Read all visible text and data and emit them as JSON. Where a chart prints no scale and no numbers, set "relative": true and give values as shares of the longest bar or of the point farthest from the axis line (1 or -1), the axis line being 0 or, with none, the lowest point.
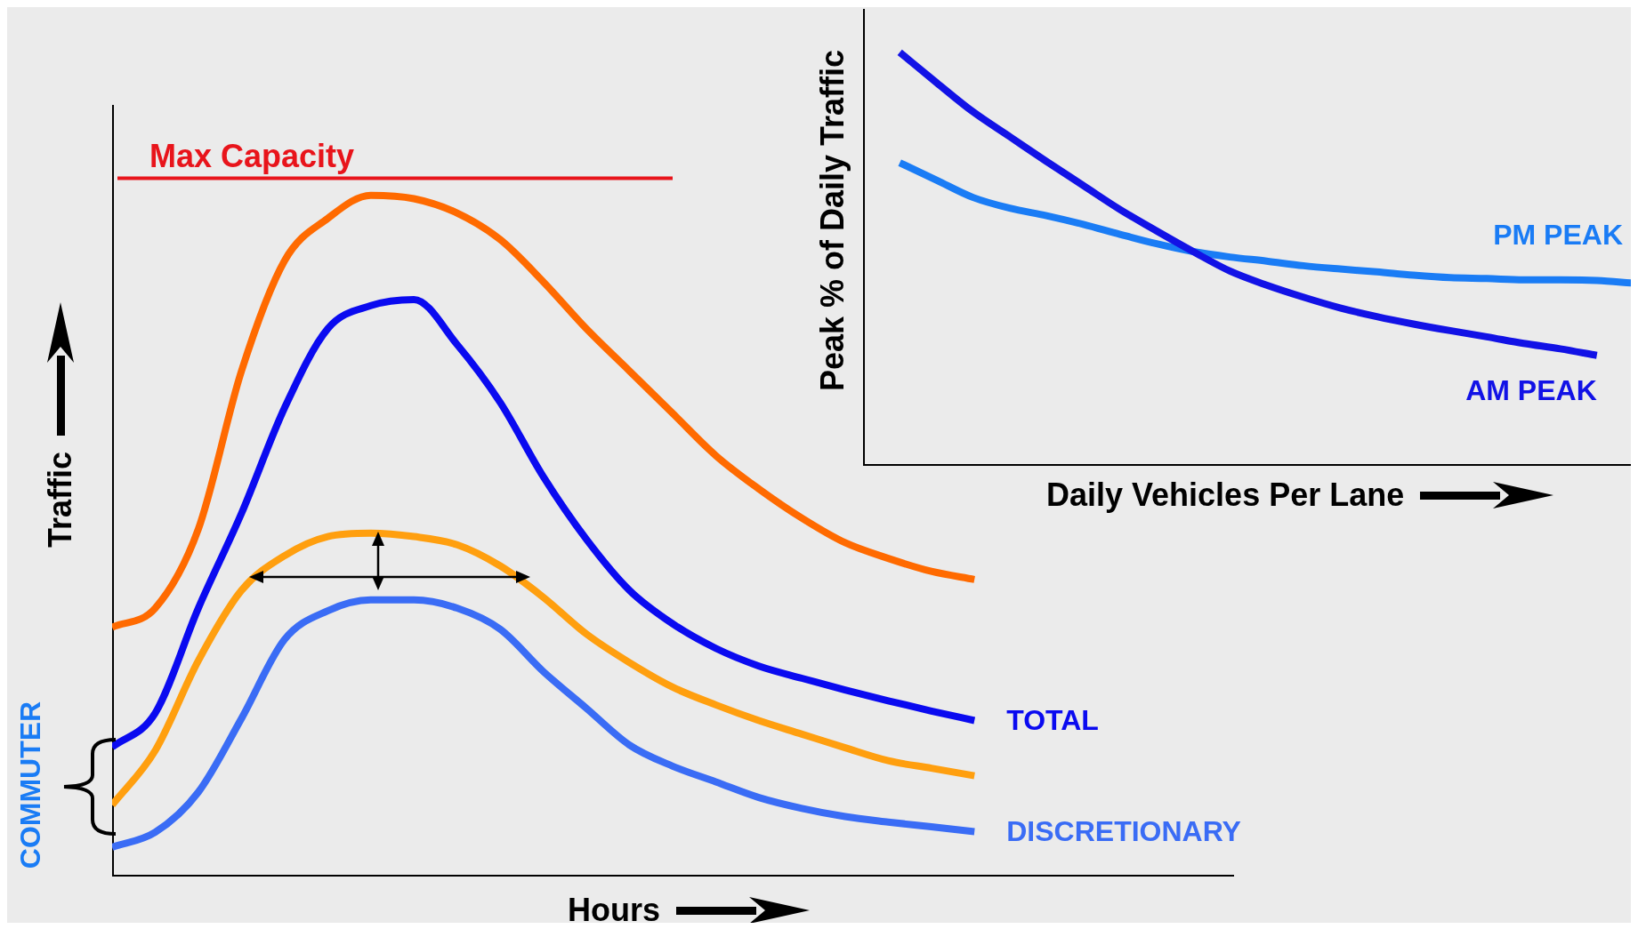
{
  "chart_data": [
    {
      "type": "line",
      "relative": true,
      "xlabel": "Hours",
      "ylabel": "Traffic",
      "annotations": [
        "COMMUTER"
      ],
      "categories": [
        null,
        null,
        null,
        null,
        null,
        null,
        null,
        null,
        null,
        null,
        null,
        null,
        null,
        null,
        null,
        null,
        null,
        null,
        null,
        null,
        null,
        null,
        null,
        null,
        null,
        null,
        null
      ],
      "ref_lines": [
        {
          "axis": "y",
          "value": 1.025,
          "label": "Max Capacity",
          "color": "#e8141b"
        }
      ],
      "series": [
        {
          "color": "#ff6a00",
          "values": [
            0.366,
            0.394,
            0.51,
            0.742,
            0.904,
            0.966,
            1.0,
            0.995,
            0.974,
            0.935,
            0.873,
            0.804,
            0.742,
            0.68,
            0.618,
            0.569,
            0.526,
            0.49,
            0.467,
            0.448,
            0.436,
            null,
            null,
            null,
            null,
            null,
            null
          ]
        },
        {
          "name": "TOTAL",
          "color": "#0a0af0",
          "values": [
            0.19,
            0.24,
            0.394,
            0.533,
            0.688,
            0.804,
            0.838,
            0.847,
            0.781,
            0.696,
            0.587,
            0.495,
            0.42,
            0.371,
            0.335,
            0.309,
            0.291,
            0.274,
            0.258,
            0.243,
            0.229,
            null,
            null,
            null,
            null,
            null,
            null
          ]
        },
        {
          "color": "#ff9f0f",
          "values": [
            0.105,
            0.185,
            0.317,
            0.42,
            0.471,
            0.499,
            0.504,
            0.499,
            0.487,
            0.456,
            0.41,
            0.356,
            0.314,
            0.278,
            0.252,
            0.229,
            0.209,
            0.189,
            0.17,
            0.159,
            0.148,
            null,
            null,
            null,
            null,
            null,
            null
          ]
        },
        {
          "name": "DISCRETIONARY",
          "color": "#3a6cf5",
          "values": [
            0.043,
            0.065,
            0.124,
            0.232,
            0.348,
            0.39,
            0.406,
            0.406,
            0.394,
            0.363,
            0.301,
            0.247,
            0.193,
            0.162,
            0.139,
            0.116,
            0.1,
            0.088,
            0.08,
            0.073,
            0.066,
            null,
            null,
            null,
            null,
            null,
            null
          ]
        }
      ]
    },
    {
      "type": "line",
      "relative": true,
      "xlabel": "Daily Vehicles Per Lane",
      "ylabel": "Peak % of Daily Traffic",
      "categories": [
        null,
        null,
        null,
        null,
        null,
        null,
        null,
        null,
        null,
        null,
        null,
        null,
        null,
        null,
        null,
        null,
        null,
        null,
        null,
        null,
        null,
        null
      ],
      "series": [
        {
          "name": "AM PEAK",
          "color": "#1212e6",
          "values": [
            null,
            1.0,
            0.927,
            0.856,
            0.796,
            0.736,
            0.678,
            0.62,
            0.568,
            0.518,
            0.471,
            0.437,
            0.408,
            0.382,
            0.361,
            0.343,
            0.327,
            0.312,
            0.296,
            0.283,
            0.267,
            null
          ]
        },
        {
          "name": "PM PEAK",
          "color": "#1a7cf5",
          "values": [
            null,
            0.733,
            0.691,
            0.649,
            0.623,
            0.605,
            0.584,
            0.56,
            0.537,
            0.518,
            0.505,
            0.495,
            0.484,
            0.476,
            0.469,
            0.461,
            0.455,
            0.453,
            0.45,
            0.45,
            0.448,
            0.442
          ]
        }
      ]
    }
  ]
}
